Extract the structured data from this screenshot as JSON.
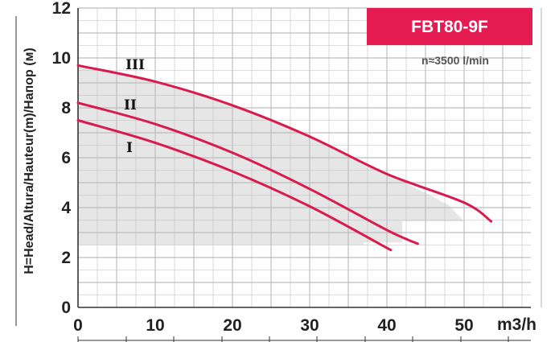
{
  "chart_data": {
    "type": "line",
    "title": "FBT80-9F",
    "subtitle": "n≈3500 l/min",
    "ylabel": "H=Head/Altura/Hauteur(m)/Напор (м)",
    "xunit": "m3/h",
    "xlim": [
      0,
      60
    ],
    "ylim": [
      0,
      12
    ],
    "x_ticks": [
      "0",
      "10",
      "20",
      "30",
      "40",
      "50"
    ],
    "y_ticks": [
      "0",
      "2",
      "4",
      "6",
      "8",
      "10",
      "12"
    ],
    "grid": true,
    "operating_range": "shaded",
    "series": [
      {
        "name": "I",
        "points": [
          [
            0,
            7.5
          ],
          [
            10,
            6.6
          ],
          [
            20,
            5.45
          ],
          [
            30,
            4.05
          ],
          [
            40.5,
            2.3
          ]
        ]
      },
      {
        "name": "II",
        "points": [
          [
            0,
            8.2
          ],
          [
            10,
            7.35
          ],
          [
            20,
            6.2
          ],
          [
            30,
            4.75
          ],
          [
            40,
            3.1
          ],
          [
            44,
            2.55
          ]
        ]
      },
      {
        "name": "III",
        "points": [
          [
            0,
            9.7
          ],
          [
            10,
            9.05
          ],
          [
            20,
            8.1
          ],
          [
            30,
            6.85
          ],
          [
            40,
            5.35
          ],
          [
            50,
            4.2
          ],
          [
            53.5,
            3.45
          ]
        ]
      }
    ],
    "colors": {
      "curve": "#d81b4f",
      "badge": "#e41c52",
      "shade": "#e6e6e6",
      "grid": "#bdbdbd"
    }
  }
}
